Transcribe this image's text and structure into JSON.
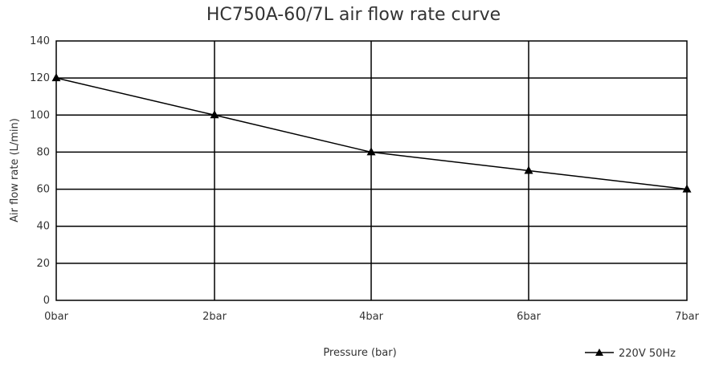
{
  "chart_data": {
    "type": "line",
    "title": "HC750A-60/7L air flow rate curve",
    "xlabel": "Pressure (bar)",
    "ylabel": "Air flow rate (L/min)",
    "categories": [
      "0bar",
      "2bar",
      "4bar",
      "6bar",
      "7bar"
    ],
    "ylim": [
      0,
      140
    ],
    "yticks": [
      0,
      20,
      40,
      60,
      80,
      100,
      120,
      140
    ],
    "ytick_labels": [
      "0",
      "20",
      "40",
      "60",
      "80",
      "100",
      "120",
      "140"
    ],
    "grid": true,
    "legend_position": "bottom-right",
    "series": [
      {
        "name": "220V 50Hz",
        "marker": "triangle",
        "color": "#000000",
        "values": [
          120,
          100,
          80,
          70,
          60
        ]
      }
    ]
  }
}
